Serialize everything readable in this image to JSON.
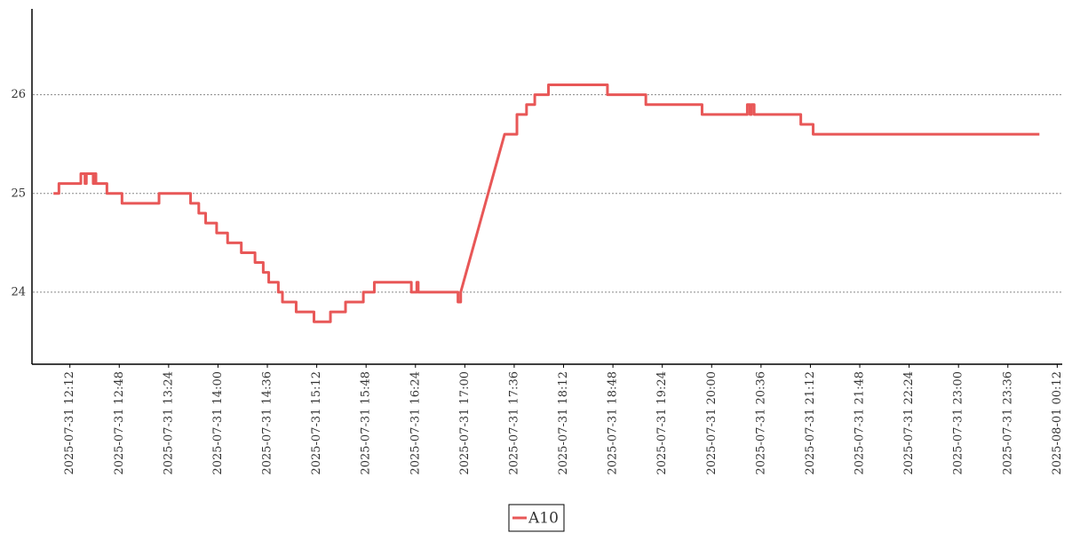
{
  "chart_data": {
    "type": "line",
    "grid": true,
    "legend": "lower center",
    "x": [
      "2025-07-31 12:00",
      "2025-07-31 12:04",
      "2025-07-31 12:04",
      "2025-07-31 12:20",
      "2025-07-31 12:20",
      "2025-07-31 12:23",
      "2025-07-31 12:23",
      "2025-07-31 12:24",
      "2025-07-31 12:24",
      "2025-07-31 12:29",
      "2025-07-31 12:29",
      "2025-07-31 12:30",
      "2025-07-31 12:30",
      "2025-07-31 12:31",
      "2025-07-31 12:31",
      "2025-07-31 12:39",
      "2025-07-31 12:39",
      "2025-07-31 12:50",
      "2025-07-31 12:50",
      "2025-07-31 13:17",
      "2025-07-31 13:17",
      "2025-07-31 13:40",
      "2025-07-31 13:40",
      "2025-07-31 13:46",
      "2025-07-31 13:46",
      "2025-07-31 13:51",
      "2025-07-31 13:51",
      "2025-07-31 13:59",
      "2025-07-31 13:59",
      "2025-07-31 14:07",
      "2025-07-31 14:07",
      "2025-07-31 14:17",
      "2025-07-31 14:17",
      "2025-07-31 14:27",
      "2025-07-31 14:27",
      "2025-07-31 14:33",
      "2025-07-31 14:33",
      "2025-07-31 14:37",
      "2025-07-31 14:37",
      "2025-07-31 14:44",
      "2025-07-31 14:44",
      "2025-07-31 14:47",
      "2025-07-31 14:47",
      "2025-07-31 14:57",
      "2025-07-31 14:57",
      "2025-07-31 15:10",
      "2025-07-31 15:10",
      "2025-07-31 15:22",
      "2025-07-31 15:22",
      "2025-07-31 15:33",
      "2025-07-31 15:33",
      "2025-07-31 15:46",
      "2025-07-31 15:46",
      "2025-07-31 15:54",
      "2025-07-31 15:54",
      "2025-07-31 16:21",
      "2025-07-31 16:21",
      "2025-07-31 16:25",
      "2025-07-31 16:25",
      "2025-07-31 16:26",
      "2025-07-31 16:26",
      "2025-07-31 16:55",
      "2025-07-31 16:55",
      "2025-07-31 16:57",
      "2025-07-31 16:57",
      "2025-07-31 16:59",
      "2025-07-31 17:01",
      "2025-07-31 17:03",
      "2025-07-31 17:05",
      "2025-07-31 17:07",
      "2025-07-31 17:09",
      "2025-07-31 17:11",
      "2025-07-31 17:13",
      "2025-07-31 17:15",
      "2025-07-31 17:17",
      "2025-07-31 17:19",
      "2025-07-31 17:21",
      "2025-07-31 17:23",
      "2025-07-31 17:25",
      "2025-07-31 17:27",
      "2025-07-31 17:29",
      "2025-07-31 17:38",
      "2025-07-31 17:38",
      "2025-07-31 17:45",
      "2025-07-31 17:45",
      "2025-07-31 17:51",
      "2025-07-31 17:51",
      "2025-07-31 18:01",
      "2025-07-31 18:01",
      "2025-07-31 18:44",
      "2025-07-31 18:44",
      "2025-07-31 19:12",
      "2025-07-31 19:12",
      "2025-07-31 19:53",
      "2025-07-31 19:53",
      "2025-07-31 20:26",
      "2025-07-31 20:26",
      "2025-07-31 20:28",
      "2025-07-31 20:28",
      "2025-07-31 20:29",
      "2025-07-31 20:29",
      "2025-07-31 20:31",
      "2025-07-31 20:31",
      "2025-07-31 21:05",
      "2025-07-31 21:05",
      "2025-07-31 21:14",
      "2025-07-31 21:14",
      "2025-07-31 23:59"
    ],
    "series": [
      {
        "name": "A10",
        "color": "#e85757",
        "values": [
          25.0,
          25.0,
          25.1,
          25.1,
          25.2,
          25.2,
          25.1,
          25.1,
          25.2,
          25.2,
          25.1,
          25.1,
          25.2,
          25.2,
          25.1,
          25.1,
          25.0,
          25.0,
          24.9,
          24.9,
          25.0,
          25.0,
          24.9,
          24.9,
          24.8,
          24.8,
          24.7,
          24.7,
          24.6,
          24.6,
          24.5,
          24.5,
          24.4,
          24.4,
          24.3,
          24.3,
          24.2,
          24.2,
          24.1,
          24.1,
          24.0,
          24.0,
          23.9,
          23.9,
          23.8,
          23.8,
          23.7,
          23.7,
          23.8,
          23.8,
          23.9,
          23.9,
          24.0,
          24.0,
          24.1,
          24.1,
          24.0,
          24.0,
          24.1,
          24.1,
          24.0,
          24.0,
          23.9,
          23.9,
          24.0,
          24.1,
          24.2,
          24.3,
          24.4,
          24.5,
          24.6,
          24.7,
          24.8,
          24.9,
          25.0,
          25.1,
          25.2,
          25.3,
          25.4,
          25.5,
          25.6,
          25.6,
          25.8,
          25.8,
          25.9,
          25.9,
          26.0,
          26.0,
          26.1,
          26.1,
          26.0,
          26.0,
          25.9,
          25.9,
          25.8,
          25.8,
          25.9,
          25.9,
          25.8,
          25.8,
          25.9,
          25.9,
          25.8,
          25.8,
          25.7,
          25.7,
          25.6,
          25.6
        ]
      }
    ],
    "xlim": [
      "2025-07-31 11:45",
      "2025-08-01 00:15"
    ],
    "xticks": [
      "2025-07-31 12:12",
      "2025-07-31 12:48",
      "2025-07-31 13:24",
      "2025-07-31 14:00",
      "2025-07-31 14:36",
      "2025-07-31 15:12",
      "2025-07-31 15:48",
      "2025-07-31 16:24",
      "2025-07-31 17:00",
      "2025-07-31 17:36",
      "2025-07-31 18:12",
      "2025-07-31 18:48",
      "2025-07-31 19:24",
      "2025-07-31 20:00",
      "2025-07-31 20:36",
      "2025-07-31 21:12",
      "2025-07-31 21:48",
      "2025-07-31 22:24",
      "2025-07-31 23:00",
      "2025-07-31 23:36",
      "2025-08-01 00:12"
    ],
    "ylim": [
      23.27,
      26.87
    ],
    "yticks": [
      24,
      25,
      26
    ]
  }
}
